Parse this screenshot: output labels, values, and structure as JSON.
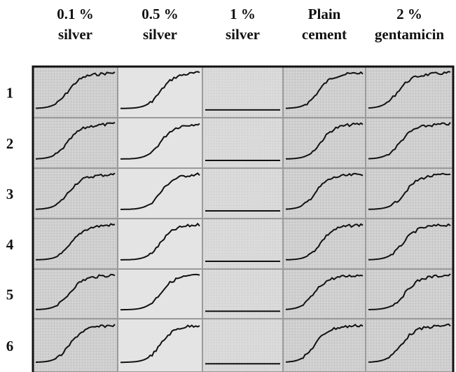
{
  "columns": [
    {
      "line1": "0.1 %",
      "line2": "silver"
    },
    {
      "line1": "0.5 %",
      "line2": "silver"
    },
    {
      "line1": "1 %",
      "line2": "silver"
    },
    {
      "line1": "Plain",
      "line2": "cement"
    },
    {
      "line1": "2 %",
      "line2": "gentamicin"
    }
  ],
  "rows": [
    "1",
    "2",
    "3",
    "4",
    "5",
    "6"
  ]
}
